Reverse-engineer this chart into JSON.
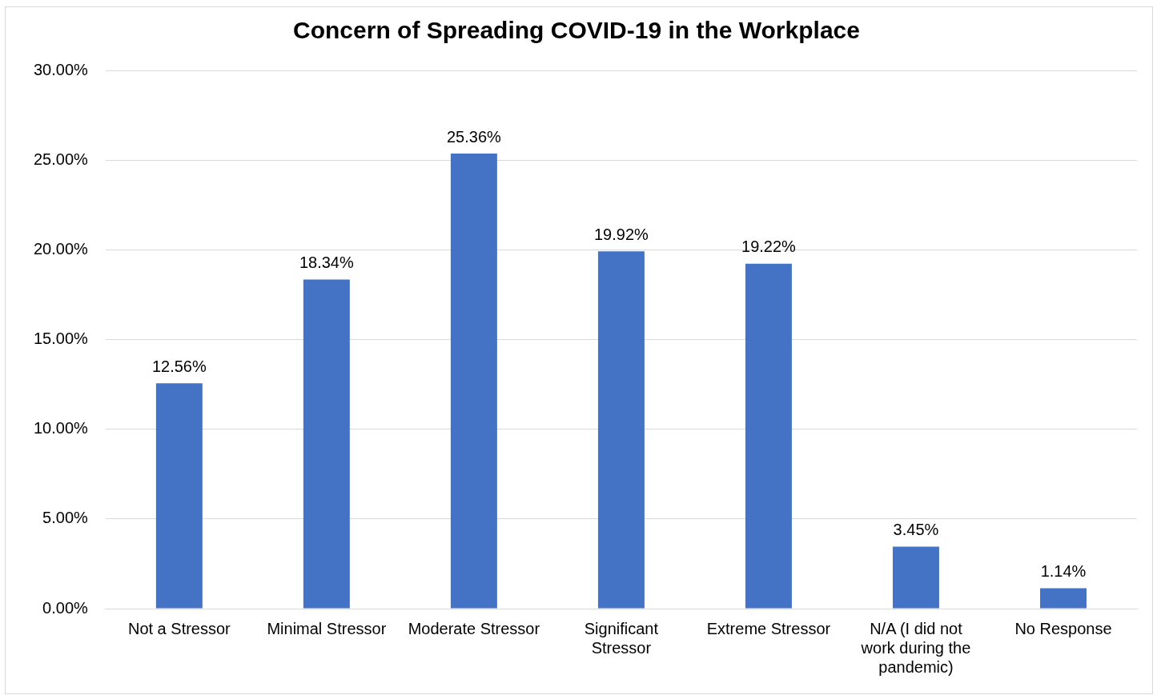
{
  "chart_data": {
    "type": "bar",
    "title": "Concern of Spreading COVID-19 in the Workplace",
    "categories": [
      "Not a Stressor",
      "Minimal Stressor",
      "Moderate Stressor",
      "Significant\nStressor",
      "Extreme Stressor",
      "N/A (I did not\nwork during the\npandemic)",
      "No Response"
    ],
    "values": [
      12.56,
      18.34,
      25.36,
      19.92,
      19.22,
      3.45,
      1.14
    ],
    "value_labels": [
      "12.56%",
      "18.34%",
      "25.36%",
      "19.92%",
      "19.22%",
      "3.45%",
      "1.14%"
    ],
    "color": "#4472c4",
    "ylim": [
      0,
      30
    ],
    "yticks": [
      {
        "value": 0,
        "label": "0.00%"
      },
      {
        "value": 5,
        "label": "5.00%"
      },
      {
        "value": 10,
        "label": "10.00%"
      },
      {
        "value": 15,
        "label": "15.00%"
      },
      {
        "value": 20,
        "label": "20.00%"
      },
      {
        "value": 25,
        "label": "25.00%"
      },
      {
        "value": 30,
        "label": "30.00%"
      }
    ],
    "grid": "y",
    "legend": false
  }
}
